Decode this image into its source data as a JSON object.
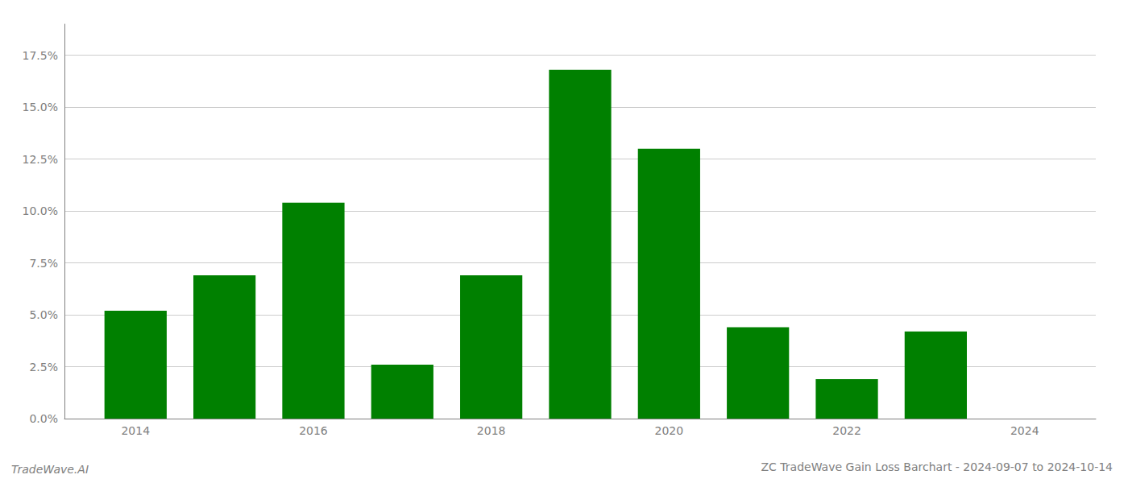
{
  "chart_data": {
    "type": "bar",
    "title": "ZC TradeWave Gain Loss Barchart - 2024-09-07 to 2024-10-14",
    "annotations": [
      "TradeWave.AI"
    ],
    "x": [
      2014,
      2015,
      2016,
      2017,
      2018,
      2019,
      2020,
      2021,
      2022,
      2023,
      2024
    ],
    "values": [
      0.052,
      0.069,
      0.104,
      0.026,
      0.069,
      0.168,
      0.13,
      0.044,
      0.019,
      0.042,
      0.0
    ],
    "color": "#008000",
    "xlim": [
      2013.2,
      2024.8
    ],
    "xticks": [
      2014,
      2016,
      2018,
      2020,
      2022,
      2024
    ],
    "ylim": [
      0,
      0.19
    ],
    "yticks": [
      {
        "value": 0.0,
        "label": "0.0%"
      },
      {
        "value": 0.025,
        "label": "2.5%"
      },
      {
        "value": 0.05,
        "label": "5.0%"
      },
      {
        "value": 0.075,
        "label": "7.5%"
      },
      {
        "value": 0.1,
        "label": "10.0%"
      },
      {
        "value": 0.125,
        "label": "12.5%"
      },
      {
        "value": 0.15,
        "label": "15.0%"
      },
      {
        "value": 0.175,
        "label": "17.5%"
      }
    ],
    "grid": true
  }
}
